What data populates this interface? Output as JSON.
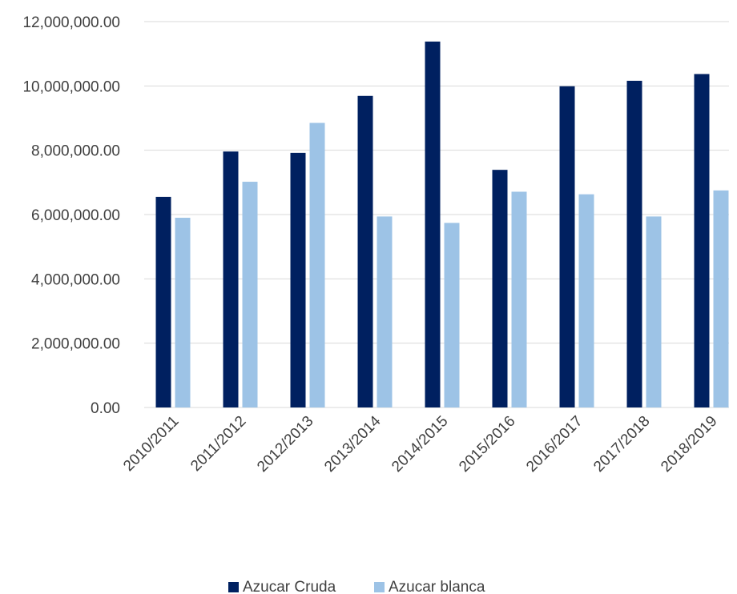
{
  "chart_data": {
    "type": "bar",
    "categories": [
      "2010/2011",
      "2011/2012",
      "2012/2013",
      "2013/2014",
      "2014/2015",
      "2015/2016",
      "2016/2017",
      "2017/2018",
      "2018/2019"
    ],
    "series": [
      {
        "name": "Azucar Cruda",
        "color": "#002060",
        "values": [
          6550000,
          7960000,
          7920000,
          9690000,
          11380000,
          7390000,
          9990000,
          10160000,
          10370000
        ]
      },
      {
        "name": "Azucar blanca",
        "color": "#9dc3e6",
        "values": [
          5900000,
          7020000,
          8850000,
          5940000,
          5740000,
          6710000,
          6630000,
          5940000,
          6750000
        ]
      }
    ],
    "yticks": [
      "0.00",
      "2,000,000.00",
      "4,000,000.00",
      "6,000,000.00",
      "8,000,000.00",
      "10,000,000.00",
      "12,000,000.00"
    ],
    "ylim": [
      0,
      12000000
    ],
    "grid": true,
    "legend_position": "bottom",
    "title": "",
    "xlabel": "",
    "ylabel": ""
  }
}
